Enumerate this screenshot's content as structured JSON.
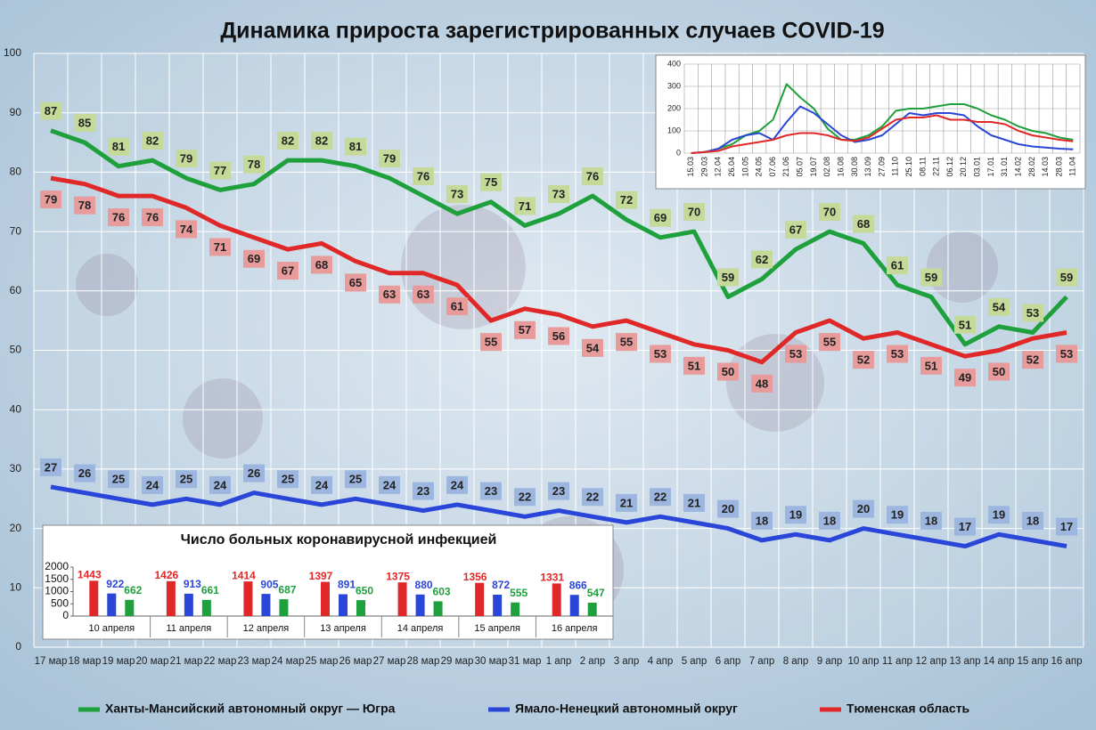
{
  "chart_data": [
    {
      "type": "line",
      "title": "Динамика прироста зарегистрированных случаев COVID-19",
      "categories": [
        "17 мар",
        "18 мар",
        "19 мар",
        "20 мар",
        "21 мар",
        "22 мар",
        "23 мар",
        "24 мар",
        "25 мар",
        "26 мар",
        "27 мар",
        "28 мар",
        "29 мар",
        "30 мар",
        "31 мар",
        "1 апр",
        "2 апр",
        "3 апр",
        "4 апр",
        "5 апр",
        "6 апр",
        "7 апр",
        "8 апр",
        "9 апр",
        "10 апр",
        "11 апр",
        "12 апр",
        "13 апр",
        "14 апр",
        "15 апр",
        "16 апр"
      ],
      "series": [
        {
          "name": "Ханты-Мансийский автономный округ — Югра",
          "color": "#1ea03c",
          "values": [
            87,
            85,
            81,
            82,
            79,
            77,
            78,
            82,
            82,
            81,
            79,
            76,
            73,
            75,
            71,
            73,
            76,
            72,
            69,
            70,
            59,
            62,
            67,
            70,
            68,
            61,
            59,
            51,
            54,
            53,
            59
          ]
        },
        {
          "name": "Ямало-Ненецкий автономный округ",
          "color": "#2a46d8",
          "values": [
            27,
            26,
            25,
            24,
            25,
            24,
            26,
            25,
            24,
            25,
            24,
            23,
            24,
            23,
            22,
            23,
            22,
            21,
            22,
            21,
            20,
            18,
            19,
            18,
            20,
            19,
            18,
            17,
            19,
            18,
            17
          ]
        },
        {
          "name": "Тюменская область",
          "color": "#e02828",
          "values": [
            79,
            78,
            76,
            76,
            74,
            71,
            69,
            67,
            68,
            65,
            63,
            63,
            61,
            55,
            57,
            56,
            54,
            55,
            53,
            51,
            50,
            48,
            53,
            55,
            52,
            53,
            51,
            49,
            50,
            52,
            53
          ]
        }
      ],
      "ylim": [
        0,
        100
      ],
      "yticks": [
        0,
        10,
        20,
        30,
        40,
        50,
        60,
        70,
        80,
        90,
        100
      ],
      "grid": true
    },
    {
      "type": "line",
      "categories": [
        "15.03",
        "29.03",
        "12.04",
        "26.04",
        "10.05",
        "24.05",
        "07.06",
        "21.06",
        "05.07",
        "19.07",
        "02.08",
        "16.08",
        "30.08",
        "13.09",
        "27.09",
        "11.10",
        "25.10",
        "08.11",
        "22.11",
        "06.12",
        "20.12",
        "03.01",
        "17.01",
        "31.01",
        "14.02",
        "28.02",
        "14.03",
        "28.03",
        "11.04"
      ],
      "series": [
        {
          "color": "#1ea03c",
          "values": [
            0,
            5,
            20,
            40,
            80,
            100,
            150,
            310,
            250,
            200,
            110,
            60,
            60,
            80,
            120,
            190,
            200,
            200,
            210,
            220,
            220,
            200,
            170,
            150,
            120,
            100,
            90,
            70,
            60
          ]
        },
        {
          "color": "#2a46d8",
          "values": [
            0,
            5,
            20,
            60,
            80,
            90,
            60,
            140,
            210,
            180,
            130,
            80,
            50,
            60,
            80,
            130,
            180,
            170,
            180,
            180,
            170,
            120,
            80,
            60,
            40,
            30,
            25,
            20,
            17
          ]
        },
        {
          "color": "#e02828",
          "values": [
            0,
            5,
            10,
            30,
            40,
            50,
            60,
            80,
            90,
            90,
            80,
            60,
            55,
            70,
            110,
            150,
            160,
            160,
            170,
            150,
            150,
            140,
            140,
            130,
            100,
            80,
            70,
            60,
            53
          ]
        }
      ],
      "ylim": [
        0,
        400
      ],
      "yticks": [
        0,
        100,
        200,
        300,
        400
      ],
      "grid": true
    },
    {
      "type": "bar",
      "title": "Число больных коронавирусной инфекцией",
      "categories": [
        "10 апреля",
        "11 апреля",
        "12 апреля",
        "13 апреля",
        "14 апреля",
        "15 апреля",
        "16 апреля"
      ],
      "series": [
        {
          "color": "#e02828",
          "values": [
            1443,
            1426,
            1414,
            1397,
            1375,
            1356,
            1331
          ]
        },
        {
          "color": "#2a46d8",
          "values": [
            922,
            913,
            905,
            891,
            880,
            872,
            866
          ]
        },
        {
          "color": "#1ea03c",
          "values": [
            662,
            661,
            687,
            650,
            603,
            555,
            547
          ]
        }
      ],
      "ylim": [
        0,
        2000
      ],
      "yticks": [
        0,
        500,
        1000,
        1500,
        2000
      ]
    }
  ]
}
